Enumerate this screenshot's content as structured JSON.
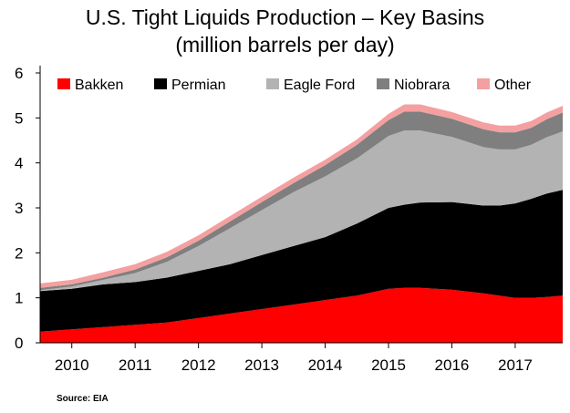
{
  "chart_data": {
    "type": "area",
    "stacked": true,
    "title": "U.S. Tight Liquids Production – Key Basins",
    "subtitle": "(million barrels per day)",
    "xlabel": "",
    "ylabel": "",
    "ylim": [
      0,
      6
    ],
    "yticks": [
      0,
      1,
      2,
      3,
      4,
      5,
      6
    ],
    "xlim": [
      2009.5,
      2017.75
    ],
    "xticks": [
      "2010",
      "2011",
      "2012",
      "2013",
      "2014",
      "2015",
      "2016",
      "2017"
    ],
    "legend_position": "top",
    "grid": false,
    "x": [
      2009.5,
      2010.0,
      2010.5,
      2011.0,
      2011.5,
      2012.0,
      2012.5,
      2013.0,
      2013.5,
      2014.0,
      2014.5,
      2015.0,
      2015.25,
      2015.5,
      2016.0,
      2016.5,
      2016.75,
      2017.0,
      2017.25,
      2017.5,
      2017.75
    ],
    "series": [
      {
        "name": "Bakken",
        "color": "#ff0000",
        "values": [
          0.25,
          0.3,
          0.35,
          0.4,
          0.45,
          0.55,
          0.65,
          0.75,
          0.85,
          0.95,
          1.05,
          1.2,
          1.22,
          1.22,
          1.18,
          1.1,
          1.05,
          1.0,
          1.0,
          1.02,
          1.05
        ]
      },
      {
        "name": "Permian",
        "color": "#000000",
        "values": [
          0.9,
          0.9,
          0.95,
          0.95,
          1.0,
          1.05,
          1.1,
          1.2,
          1.3,
          1.4,
          1.6,
          1.8,
          1.85,
          1.9,
          1.95,
          1.95,
          2.0,
          2.1,
          2.2,
          2.3,
          2.35
        ]
      },
      {
        "name": "Eagle Ford",
        "color": "#b3b3b3",
        "values": [
          0.02,
          0.05,
          0.1,
          0.2,
          0.35,
          0.55,
          0.8,
          1.0,
          1.2,
          1.35,
          1.45,
          1.6,
          1.65,
          1.6,
          1.45,
          1.3,
          1.25,
          1.2,
          1.2,
          1.25,
          1.3
        ]
      },
      {
        "name": "Niobrara",
        "color": "#7f7f7f",
        "values": [
          0.05,
          0.05,
          0.05,
          0.08,
          0.1,
          0.12,
          0.15,
          0.18,
          0.2,
          0.25,
          0.3,
          0.35,
          0.42,
          0.42,
          0.4,
          0.4,
          0.38,
          0.38,
          0.38,
          0.4,
          0.42
        ]
      },
      {
        "name": "Other",
        "color": "#f4a0a0",
        "values": [
          0.1,
          0.1,
          0.12,
          0.12,
          0.12,
          0.12,
          0.12,
          0.12,
          0.12,
          0.12,
          0.12,
          0.14,
          0.16,
          0.16,
          0.15,
          0.15,
          0.15,
          0.15,
          0.15,
          0.15,
          0.15
        ]
      }
    ]
  },
  "source": "Source: EIA"
}
